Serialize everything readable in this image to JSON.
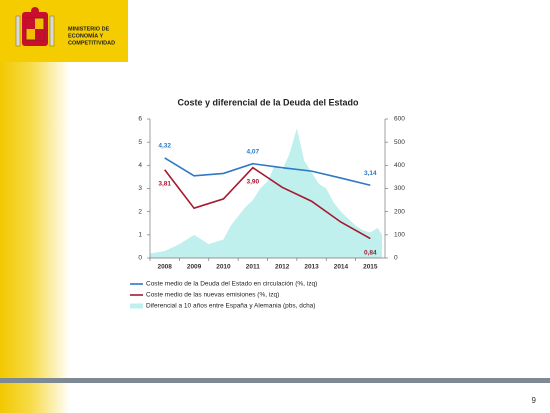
{
  "header": {
    "ministry": [
      "MINISTERIO DE",
      "ECONOMÍA Y",
      "COMPETITIVIDAD"
    ]
  },
  "page_number": "9",
  "chart_data": {
    "type": "line",
    "title": "Coste y diferencial de la Deuda del Estado",
    "categories": [
      "2008",
      "2009",
      "2010",
      "2011",
      "2012",
      "2013",
      "2014",
      "2015"
    ],
    "xlim": [
      2007.5,
      2015.5
    ],
    "ylim": [
      0,
      6
    ],
    "yticks": [
      0,
      1,
      2,
      3,
      4,
      5,
      6
    ],
    "y2lim": [
      0,
      600
    ],
    "y2ticks": [
      0,
      100,
      200,
      300,
      400,
      500,
      600
    ],
    "series": [
      {
        "name": "Coste medio de la Deuda del Estado en circulación (%, izq)",
        "color": "#2f78c4",
        "values": [
          4.32,
          3.55,
          3.65,
          4.07,
          3.9,
          3.75,
          3.45,
          3.14
        ],
        "value_labels": [
          "4,32",
          null,
          null,
          "4,07",
          null,
          null,
          null,
          "3,14"
        ]
      },
      {
        "name": "Coste medio de las nuevas emisiones (%, izq)",
        "color": "#a6192e",
        "values": [
          3.81,
          2.15,
          2.55,
          3.9,
          3.05,
          2.45,
          1.55,
          0.84
        ],
        "value_labels": [
          "3,81",
          null,
          null,
          "3,90",
          null,
          null,
          null,
          "0,84"
        ]
      },
      {
        "name": "Diferencial a 10 años entre España y Alemania (pbs, dcha)",
        "color": "#bff0ee",
        "axis": "y2",
        "kind": "area",
        "x": [
          2007.5,
          2007.75,
          2008,
          2008.25,
          2008.5,
          2008.75,
          2009,
          2009.25,
          2009.5,
          2009.75,
          2010,
          2010.25,
          2010.5,
          2010.75,
          2011,
          2011.25,
          2011.5,
          2011.75,
          2012,
          2012.25,
          2012.5,
          2012.75,
          2013,
          2013.25,
          2013.5,
          2013.75,
          2014,
          2014.25,
          2014.5,
          2014.75,
          2015,
          2015.25,
          2015.4
        ],
        "values": [
          20,
          25,
          30,
          45,
          60,
          80,
          100,
          80,
          60,
          70,
          80,
          140,
          180,
          220,
          250,
          300,
          330,
          400,
          380,
          450,
          560,
          420,
          370,
          320,
          300,
          240,
          200,
          170,
          140,
          120,
          110,
          130,
          100
        ]
      }
    ]
  }
}
